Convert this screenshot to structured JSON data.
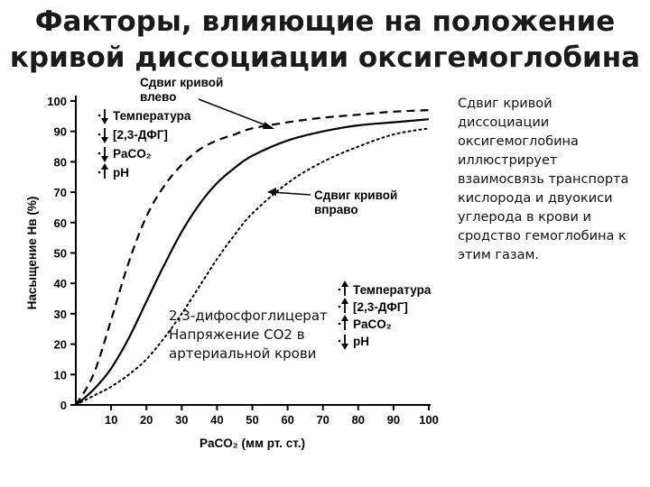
{
  "title": "Факторы, влияющие на положение кривой диссоциации оксигемоглобина",
  "side_note": "Сдвиг кривой диссоциации оксигемоглобина иллюстрирует взаимосвязь транспорта кислорода и двуокиси углерода в крови и сродство гемоглобина к этим газам.",
  "overlay_note": {
    "line1": "2,3-дифосфоглицерат",
    "line2": "Напряжение СО2 в",
    "line3": "артериальной крови"
  },
  "chart_data": {
    "type": "line",
    "xlabel": "PaCO₂ (мм рт. ст.)",
    "ylabel": "Насыщение Нв (%)",
    "xlim": [
      0,
      100
    ],
    "ylim": [
      0,
      100
    ],
    "x_ticks": [
      10,
      20,
      30,
      40,
      50,
      60,
      70,
      80,
      90,
      100
    ],
    "y_ticks": [
      0,
      10,
      20,
      30,
      40,
      50,
      60,
      70,
      80,
      90,
      100
    ],
    "grid": false,
    "series": [
      {
        "style": "dashed",
        "x": [
          0,
          5,
          10,
          15,
          20,
          25,
          30,
          35,
          40,
          45,
          50,
          60,
          70,
          80,
          90,
          100
        ],
        "y": [
          0,
          10,
          28,
          47,
          62,
          72,
          79,
          84,
          87,
          89,
          91,
          93,
          94.5,
          95.5,
          96.5,
          97
        ]
      },
      {
        "style": "solid",
        "x": [
          0,
          5,
          10,
          15,
          20,
          25,
          30,
          35,
          40,
          45,
          50,
          60,
          70,
          80,
          90,
          100
        ],
        "y": [
          0,
          5,
          12,
          22,
          34,
          46,
          57,
          66,
          73,
          78,
          82,
          87,
          90,
          92,
          93,
          94
        ]
      },
      {
        "style": "dotted",
        "x": [
          0,
          5,
          10,
          15,
          20,
          25,
          30,
          35,
          40,
          45,
          50,
          60,
          70,
          80,
          90,
          100
        ],
        "y": [
          0,
          3,
          6,
          10,
          15,
          22,
          30,
          39,
          48,
          56,
          63,
          73,
          80,
          85,
          89,
          91
        ]
      }
    ],
    "annotations": [
      {
        "label": [
          "Сдвиг кривой",
          "влево"
        ],
        "factors": [
          {
            "arrow": "down",
            "text": "Температура"
          },
          {
            "arrow": "down",
            "text": "[2,3-ДФГ]"
          },
          {
            "arrow": "down",
            "text": "PaCO₂"
          },
          {
            "arrow": "up",
            "text": "pH"
          }
        ]
      },
      {
        "label": [
          "Сдвиг кривой",
          "вправо"
        ],
        "factors": [
          {
            "arrow": "up",
            "text": "Температура"
          },
          {
            "arrow": "up",
            "text": "[2,3-ДФГ]"
          },
          {
            "arrow": "up",
            "text": "PaCO₂"
          },
          {
            "arrow": "down",
            "text": "pH"
          }
        ]
      }
    ]
  }
}
